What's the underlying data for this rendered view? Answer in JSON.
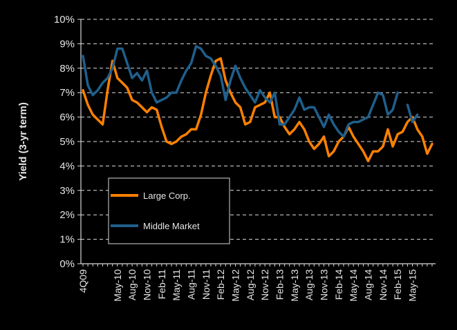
{
  "chart_data": {
    "type": "line",
    "title": "",
    "ylabel": "Yield (3-yr term)",
    "xlabel": "",
    "ylim": [
      0,
      10
    ],
    "y_ticks": [
      "0%",
      "1%",
      "2%",
      "3%",
      "4%",
      "5%",
      "6%",
      "7%",
      "8%",
      "9%",
      "10%"
    ],
    "grid": "horizontal dashed",
    "legend_position": "lower-left inside plot",
    "x_tick_labels": [
      "4Q09",
      "May-10",
      "Aug-10",
      "Nov-10",
      "Feb-11",
      "May-11",
      "Aug-11",
      "Nov-11",
      "Feb-12",
      "May-12",
      "Aug-12",
      "Nov-12",
      "Feb-13",
      "May-13",
      "Aug-13",
      "Nov-13",
      "Feb-14",
      "May-14",
      "Aug-14",
      "Nov-14",
      "Feb-15",
      "May-15"
    ],
    "x_tick_index": [
      0,
      7,
      10,
      13,
      16,
      19,
      22,
      25,
      28,
      31,
      34,
      37,
      40,
      43,
      46,
      49,
      52,
      55,
      58,
      61,
      64,
      67
    ],
    "series": [
      {
        "name": "Large Corp.",
        "color": "#ff8000",
        "values": [
          7.1,
          6.5,
          6.1,
          5.9,
          5.7,
          7.1,
          8.3,
          7.6,
          7.4,
          7.2,
          6.7,
          6.6,
          6.4,
          6.2,
          6.4,
          6.3,
          5.6,
          5.0,
          4.9,
          5.0,
          5.2,
          5.3,
          5.5,
          5.5,
          6.1,
          7.0,
          7.7,
          8.3,
          8.4,
          7.5,
          7.0,
          6.6,
          6.4,
          5.7,
          5.8,
          6.4,
          6.5,
          6.6,
          7.0,
          6.0,
          6.0,
          5.6,
          5.3,
          5.5,
          5.8,
          5.5,
          5.0,
          4.7,
          4.9,
          5.2,
          4.4,
          4.6,
          5.0,
          5.2,
          5.6,
          5.2,
          4.9,
          4.6,
          4.2,
          4.6,
          4.6,
          4.8,
          5.5,
          4.8,
          5.3,
          5.4,
          5.8,
          6.0,
          5.5,
          5.2,
          4.5,
          4.9
        ]
      },
      {
        "name": "Middle Market",
        "color": "#1f5f8c",
        "values": [
          8.5,
          7.3,
          6.9,
          7.1,
          7.4,
          7.6,
          8.0,
          8.8,
          8.8,
          8.2,
          7.6,
          7.8,
          7.5,
          7.9,
          7.0,
          6.6,
          6.7,
          6.8,
          7.0,
          7.0,
          7.5,
          7.9,
          8.2,
          8.9,
          8.8,
          8.5,
          8.4,
          8.1,
          7.7,
          6.7,
          7.5,
          8.1,
          7.6,
          7.2,
          6.9,
          6.6,
          7.1,
          6.8,
          6.6,
          7.0,
          5.7,
          5.7,
          6.0,
          6.3,
          6.8,
          6.3,
          6.4,
          6.4,
          6.0,
          5.6,
          6.1,
          5.7,
          5.4,
          5.2,
          5.7,
          5.8,
          5.8,
          5.9,
          6.0,
          6.5,
          7.0,
          6.9,
          6.1,
          6.3,
          7.0,
          null,
          6.5,
          5.8,
          6.1
        ]
      }
    ]
  }
}
